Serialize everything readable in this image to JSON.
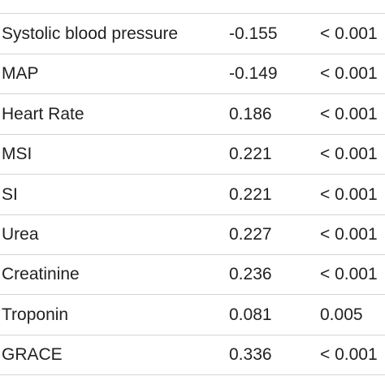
{
  "table": {
    "rows": [
      [
        "Systolic blood pressure",
        "-0.155",
        "< 0.001"
      ],
      [
        "MAP",
        "-0.149",
        "< 0.001"
      ],
      [
        "Heart Rate",
        "0.186",
        "< 0.001"
      ],
      [
        "MSI",
        "0.221",
        "< 0.001"
      ],
      [
        "SI",
        "0.221",
        "< 0.001"
      ],
      [
        "Urea",
        "0.227",
        "< 0.001"
      ],
      [
        "Creatinine",
        "0.236",
        "< 0.001"
      ],
      [
        "Troponin",
        "0.081",
        "0.005"
      ],
      [
        "GRACE",
        "0.336",
        "< 0.001"
      ]
    ]
  }
}
